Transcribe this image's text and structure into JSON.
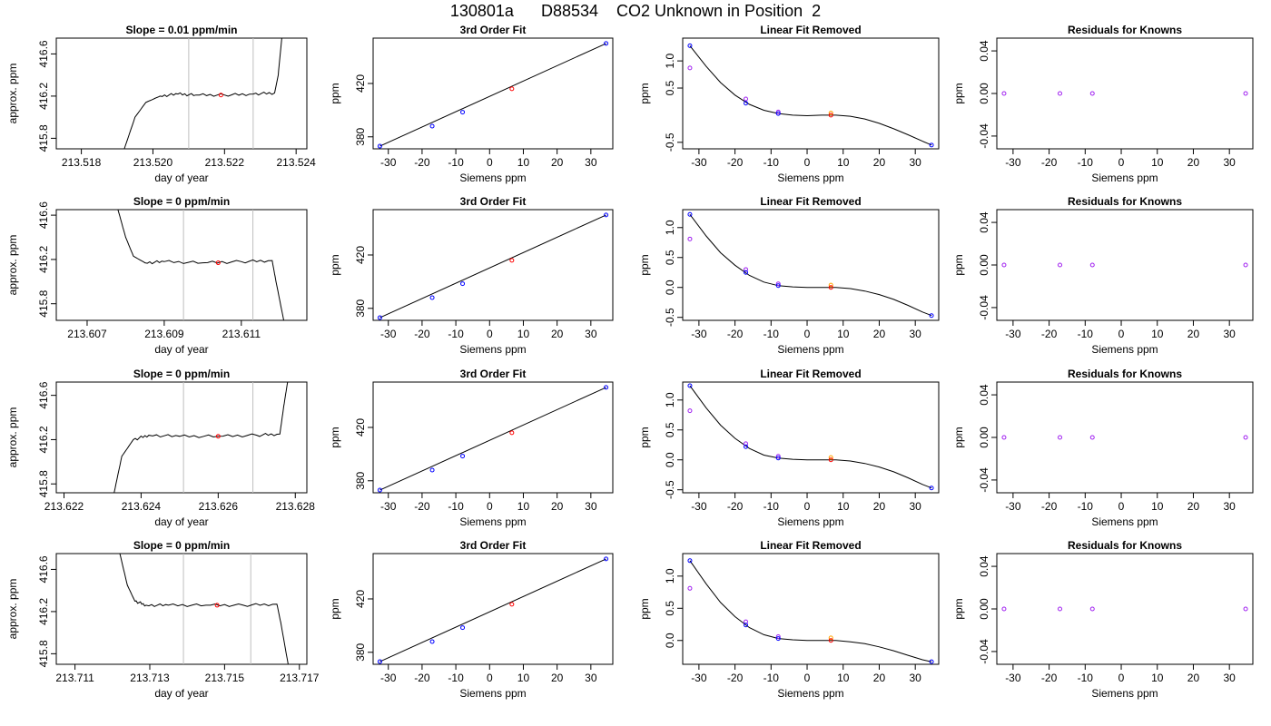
{
  "title": "130801a      D88534    CO2 Unknown in Position  2",
  "colors": {
    "trace": "#000000",
    "window": "#bebebe",
    "known": "#0000ff",
    "unknown": "#ff0000",
    "known_alt": "#a020f0",
    "unknown_alt": "#ffa500"
  },
  "chart_data": [
    {
      "type": "line",
      "title": "Slope =  0.01  ppm/min",
      "xlabel": "day of year",
      "ylabel": "approx. ppm",
      "xlim": [
        213.5173,
        213.5243
      ],
      "ylim": [
        415.7,
        416.75
      ],
      "xticks": [
        "213.518",
        "213.520",
        "213.522",
        "213.524"
      ],
      "xtick_values": [
        213.518,
        213.52,
        213.522,
        213.524
      ],
      "yticks": [
        "415.8",
        "416.2",
        "416.6"
      ],
      "ytick_values": [
        415.8,
        416.2,
        416.6
      ],
      "window": [
        213.521,
        213.5228
      ],
      "marker": {
        "x": 213.5219,
        "y": 416.21
      },
      "trace_x": [
        213.5192,
        213.5195,
        213.5198,
        213.5202,
        213.5207,
        213.5212,
        213.522,
        213.5228,
        213.5234,
        213.5235,
        213.5236
      ],
      "trace_y": [
        415.7,
        416.0,
        416.14,
        416.2,
        416.22,
        416.21,
        416.21,
        416.22,
        416.23,
        416.4,
        416.75
      ]
    },
    {
      "type": "scatter",
      "title": "3rd Order Fit",
      "xlabel": "Siemens ppm",
      "ylabel": "ppm",
      "xlim": [
        -34.5,
        36.5
      ],
      "ylim": [
        371,
        454
      ],
      "xticks": [
        "-30",
        "-20",
        "-10",
        "0",
        "10",
        "20",
        "30"
      ],
      "xtick_values": [
        -30,
        -20,
        -10,
        0,
        10,
        20,
        30
      ],
      "yticks": [
        "380",
        "420"
      ],
      "ytick_values": [
        380,
        420
      ],
      "known_x": [
        -32.5,
        -17,
        -8,
        34.5
      ],
      "known_y": [
        373,
        388,
        398.5,
        450
      ],
      "unknown": {
        "x": 6.6,
        "y": 416
      },
      "curve_x": [
        -32.5,
        34.5
      ],
      "curve_y": [
        373,
        450
      ]
    },
    {
      "type": "scatter",
      "title": "Linear Fit Removed",
      "xlabel": "Siemens ppm",
      "ylabel": "ppm",
      "xlim": [
        -34.5,
        36.5
      ],
      "ylim": [
        -0.62,
        1.42
      ],
      "xticks": [
        "-30",
        "-20",
        "-10",
        "0",
        "10",
        "20",
        "30"
      ],
      "xtick_values": [
        -30,
        -20,
        -10,
        0,
        10,
        20,
        30
      ],
      "yticks": [
        "-0.5",
        "0.5",
        "1.0"
      ],
      "ytick_values": [
        -0.5,
        0.5,
        1.0
      ],
      "known_x": [
        -32.5,
        -17,
        -8,
        34.5
      ],
      "known_y": [
        1.28,
        0.22,
        0.03,
        -0.55
      ],
      "known_alt_x": [
        -32.5,
        -17,
        -8
      ],
      "known_alt_y": [
        0.87,
        0.3,
        0.06
      ],
      "unknown": {
        "x": 6.6,
        "y": 0.0
      },
      "unknown_alt": {
        "x": 6.6,
        "y": 0.04
      },
      "curve_x": [
        -32.5,
        -28,
        -24,
        -20,
        -16,
        -12,
        -8,
        -4,
        0,
        4,
        8,
        12,
        16,
        20,
        24,
        28,
        32,
        34.5
      ],
      "curve_y": [
        1.28,
        0.9,
        0.6,
        0.37,
        0.2,
        0.09,
        0.03,
        0.0,
        -0.01,
        0.0,
        0.0,
        -0.02,
        -0.07,
        -0.15,
        -0.25,
        -0.36,
        -0.48,
        -0.55
      ]
    },
    {
      "type": "scatter",
      "title": "Residuals for Knowns",
      "xlabel": "Siemens ppm",
      "ylabel": "ppm",
      "xlim": [
        -34.5,
        36.5
      ],
      "ylim": [
        -0.052,
        0.052
      ],
      "xticks": [
        "-30",
        "-20",
        "-10",
        "0",
        "10",
        "20",
        "30"
      ],
      "xtick_values": [
        -30,
        -20,
        -10,
        0,
        10,
        20,
        30
      ],
      "yticks": [
        "-0.04",
        "0.00",
        "0.04"
      ],
      "ytick_values": [
        -0.04,
        0.0,
        0.04
      ],
      "known_x": [
        -32.5,
        -17,
        -8,
        34.5
      ],
      "known_y": [
        0,
        0,
        0,
        0
      ]
    },
    {
      "type": "line",
      "title": "Slope =  0  ppm/min",
      "xlabel": "day of year",
      "ylabel": "approx. ppm",
      "xlim": [
        213.6062,
        213.6127
      ],
      "ylim": [
        415.65,
        416.65
      ],
      "xticks": [
        "213.607",
        "213.609",
        "213.611"
      ],
      "xtick_values": [
        213.607,
        213.609,
        213.611
      ],
      "yticks": [
        "415.8",
        "416.2",
        "416.6"
      ],
      "ytick_values": [
        415.8,
        416.2,
        416.6
      ],
      "window": [
        213.6095,
        213.6113
      ],
      "marker": {
        "x": 213.6104,
        "y": 416.17
      },
      "trace_x": [
        213.6078,
        213.608,
        213.6082,
        213.6085,
        213.609,
        213.61,
        213.611,
        213.6118,
        213.6119,
        213.6121
      ],
      "trace_y": [
        416.65,
        416.4,
        416.23,
        416.17,
        416.18,
        416.17,
        416.18,
        416.19,
        416.0,
        415.65
      ]
    },
    {
      "type": "scatter",
      "title": "3rd Order Fit",
      "xlabel": "Siemens ppm",
      "ylabel": "ppm",
      "xlim": [
        -34.5,
        36.5
      ],
      "ylim": [
        371,
        454
      ],
      "xticks": [
        "-30",
        "-20",
        "-10",
        "0",
        "10",
        "20",
        "30"
      ],
      "xtick_values": [
        -30,
        -20,
        -10,
        0,
        10,
        20,
        30
      ],
      "yticks": [
        "380",
        "420"
      ],
      "ytick_values": [
        380,
        420
      ],
      "known_x": [
        -32.5,
        -17,
        -8,
        34.5
      ],
      "known_y": [
        373,
        388,
        398.5,
        450
      ],
      "unknown": {
        "x": 6.6,
        "y": 416
      },
      "curve_x": [
        -32.5,
        34.5
      ],
      "curve_y": [
        373,
        450
      ]
    },
    {
      "type": "scatter",
      "title": "Linear Fit Removed",
      "xlabel": "Siemens ppm",
      "ylabel": "ppm",
      "xlim": [
        -34.5,
        36.5
      ],
      "ylim": [
        -0.55,
        1.3
      ],
      "xticks": [
        "-30",
        "-20",
        "-10",
        "0",
        "10",
        "20",
        "30"
      ],
      "xtick_values": [
        -30,
        -20,
        -10,
        0,
        10,
        20,
        30
      ],
      "yticks": [
        "-0.5",
        "0.0",
        "0.5",
        "1.0"
      ],
      "ytick_values": [
        -0.5,
        0.0,
        0.5,
        1.0
      ],
      "known_x": [
        -32.5,
        -17,
        -8,
        34.5
      ],
      "known_y": [
        1.22,
        0.25,
        0.03,
        -0.47
      ],
      "known_alt_x": [
        -32.5,
        -17,
        -8
      ],
      "known_alt_y": [
        0.81,
        0.3,
        0.06
      ],
      "unknown": {
        "x": 6.6,
        "y": 0.0
      },
      "unknown_alt": {
        "x": 6.6,
        "y": 0.04
      },
      "curve_x": [
        -32.5,
        -28,
        -24,
        -20,
        -16,
        -12,
        -8,
        -4,
        0,
        4,
        8,
        12,
        16,
        20,
        24,
        28,
        32,
        34.5
      ],
      "curve_y": [
        1.22,
        0.86,
        0.58,
        0.37,
        0.2,
        0.09,
        0.03,
        0.01,
        0.0,
        0.0,
        0.0,
        -0.02,
        -0.06,
        -0.12,
        -0.2,
        -0.3,
        -0.41,
        -0.47
      ]
    },
    {
      "type": "scatter",
      "title": "Residuals for Knowns",
      "xlabel": "Siemens ppm",
      "ylabel": "ppm",
      "xlim": [
        -34.5,
        36.5
      ],
      "ylim": [
        -0.052,
        0.052
      ],
      "xticks": [
        "-30",
        "-20",
        "-10",
        "0",
        "10",
        "20",
        "30"
      ],
      "xtick_values": [
        -30,
        -20,
        -10,
        0,
        10,
        20,
        30
      ],
      "yticks": [
        "-0.04",
        "0.00",
        "0.04"
      ],
      "ytick_values": [
        -0.04,
        0.0,
        0.04
      ],
      "known_x": [
        -32.5,
        -17,
        -8,
        34.5
      ],
      "known_y": [
        0,
        0,
        0,
        0
      ]
    },
    {
      "type": "line",
      "title": "Slope =  0  ppm/min",
      "xlabel": "day of year",
      "ylabel": "approx. ppm",
      "xlim": [
        213.6218,
        213.6283
      ],
      "ylim": [
        415.72,
        416.72
      ],
      "xticks": [
        "213.622",
        "213.624",
        "213.626",
        "213.628"
      ],
      "xtick_values": [
        213.622,
        213.624,
        213.626,
        213.628
      ],
      "yticks": [
        "415.8",
        "416.2",
        "416.6"
      ],
      "ytick_values": [
        415.8,
        416.2,
        416.6
      ],
      "window": [
        213.6251,
        213.6269
      ],
      "marker": {
        "x": 213.626,
        "y": 416.23
      },
      "trace_x": [
        213.6233,
        213.6235,
        213.6238,
        213.6242,
        213.625,
        213.626,
        213.627,
        213.6276,
        213.6277,
        213.6278
      ],
      "trace_y": [
        415.72,
        416.05,
        416.2,
        416.24,
        416.23,
        416.23,
        416.24,
        416.25,
        416.5,
        416.72
      ]
    },
    {
      "type": "scatter",
      "title": "3rd Order Fit",
      "xlabel": "Siemens ppm",
      "ylabel": "ppm",
      "xlim": [
        -34.5,
        36.5
      ],
      "ylim": [
        371,
        454
      ],
      "xticks": [
        "-30",
        "-20",
        "-10",
        "0",
        "10",
        "20",
        "30"
      ],
      "xtick_values": [
        -30,
        -20,
        -10,
        0,
        10,
        20,
        30
      ],
      "yticks": [
        "380",
        "420"
      ],
      "ytick_values": [
        380,
        420
      ],
      "known_x": [
        -32.5,
        -17,
        -8,
        34.5
      ],
      "known_y": [
        373,
        388,
        398.5,
        450
      ],
      "unknown": {
        "x": 6.6,
        "y": 416
      },
      "curve_x": [
        -32.5,
        34.5
      ],
      "curve_y": [
        373,
        450
      ]
    },
    {
      "type": "scatter",
      "title": "Linear Fit Removed",
      "xlabel": "Siemens ppm",
      "ylabel": "ppm",
      "xlim": [
        -34.5,
        36.5
      ],
      "ylim": [
        -0.55,
        1.3
      ],
      "xticks": [
        "-30",
        "-20",
        "-10",
        "0",
        "10",
        "20",
        "30"
      ],
      "xtick_values": [
        -30,
        -20,
        -10,
        0,
        10,
        20,
        30
      ],
      "yticks": [
        "-0.5",
        "0.0",
        "0.5",
        "1.0"
      ],
      "ytick_values": [
        -0.5,
        0.0,
        0.5,
        1.0
      ],
      "known_x": [
        -32.5,
        -17,
        -8,
        34.5
      ],
      "known_y": [
        1.24,
        0.22,
        0.03,
        -0.47
      ],
      "known_alt_x": [
        -32.5,
        -17,
        -8
      ],
      "known_alt_y": [
        0.82,
        0.27,
        0.06
      ],
      "unknown": {
        "x": 6.6,
        "y": 0.0
      },
      "unknown_alt": {
        "x": 6.6,
        "y": 0.04
      },
      "curve_x": [
        -32.5,
        -28,
        -24,
        -20,
        -16,
        -12,
        -8,
        -4,
        0,
        4,
        8,
        12,
        16,
        20,
        24,
        28,
        32,
        34.5
      ],
      "curve_y": [
        1.24,
        0.87,
        0.58,
        0.36,
        0.19,
        0.08,
        0.03,
        0.01,
        0.0,
        0.0,
        0.0,
        -0.02,
        -0.06,
        -0.12,
        -0.2,
        -0.3,
        -0.41,
        -0.47
      ]
    },
    {
      "type": "scatter",
      "title": "Residuals for Knowns",
      "xlabel": "Siemens ppm",
      "ylabel": "ppm",
      "xlim": [
        -34.5,
        36.5
      ],
      "ylim": [
        -0.052,
        0.052
      ],
      "xticks": [
        "-30",
        "-20",
        "-10",
        "0",
        "10",
        "20",
        "30"
      ],
      "xtick_values": [
        -30,
        -20,
        -10,
        0,
        10,
        20,
        30
      ],
      "yticks": [
        "-0.04",
        "0.00",
        "0.04"
      ],
      "ytick_values": [
        -0.04,
        0.0,
        0.04
      ],
      "known_x": [
        -32.5,
        -17,
        -8,
        34.5
      ],
      "known_y": [
        0,
        0,
        0,
        0
      ]
    },
    {
      "type": "line",
      "title": "Slope =  0  ppm/min",
      "xlabel": "day of year",
      "ylabel": "approx. ppm",
      "xlim": [
        213.7105,
        213.7172
      ],
      "ylim": [
        415.7,
        416.75
      ],
      "xticks": [
        "213.711",
        "213.713",
        "213.715",
        "213.717"
      ],
      "xtick_values": [
        213.711,
        213.713,
        213.715,
        213.717
      ],
      "yticks": [
        "415.8",
        "416.2",
        "416.6"
      ],
      "ytick_values": [
        415.8,
        416.2,
        416.6
      ],
      "window": [
        213.7139,
        213.7157
      ],
      "marker": {
        "x": 213.7148,
        "y": 416.26
      },
      "trace_x": [
        213.7122,
        213.7124,
        213.7126,
        213.7129,
        213.7135,
        213.7145,
        213.7155,
        213.7164,
        213.7165,
        213.7167
      ],
      "trace_y": [
        416.75,
        416.45,
        416.3,
        416.26,
        416.26,
        416.26,
        416.26,
        416.27,
        416.1,
        415.7
      ]
    },
    {
      "type": "scatter",
      "title": "3rd Order Fit",
      "xlabel": "Siemens ppm",
      "ylabel": "ppm",
      "xlim": [
        -34.5,
        36.5
      ],
      "ylim": [
        371,
        454
      ],
      "xticks": [
        "-30",
        "-20",
        "-10",
        "0",
        "10",
        "20",
        "30"
      ],
      "xtick_values": [
        -30,
        -20,
        -10,
        0,
        10,
        20,
        30
      ],
      "yticks": [
        "380",
        "420"
      ],
      "ytick_values": [
        380,
        420
      ],
      "known_x": [
        -32.5,
        -17,
        -8,
        34.5
      ],
      "known_y": [
        373,
        388,
        398.5,
        450
      ],
      "unknown": {
        "x": 6.6,
        "y": 416
      },
      "curve_x": [
        -32.5,
        34.5
      ],
      "curve_y": [
        373,
        450
      ]
    },
    {
      "type": "scatter",
      "title": "Linear Fit Removed",
      "xlabel": "Siemens ppm",
      "ylabel": "ppm",
      "xlim": [
        -34.5,
        36.5
      ],
      "ylim": [
        -0.37,
        1.35
      ],
      "xticks": [
        "-30",
        "-20",
        "-10",
        "0",
        "10",
        "20",
        "30"
      ],
      "xtick_values": [
        -30,
        -20,
        -10,
        0,
        10,
        20,
        30
      ],
      "yticks": [
        "0.0",
        "0.5",
        "1.0"
      ],
      "ytick_values": [
        0.0,
        0.5,
        1.0
      ],
      "known_x": [
        -32.5,
        -17,
        -8,
        34.5
      ],
      "known_y": [
        1.24,
        0.24,
        0.03,
        -0.33
      ],
      "known_alt_x": [
        -32.5,
        -17,
        -8
      ],
      "known_alt_y": [
        0.81,
        0.29,
        0.06
      ],
      "unknown": {
        "x": 6.6,
        "y": 0.0
      },
      "unknown_alt": {
        "x": 6.6,
        "y": 0.04
      },
      "curve_x": [
        -32.5,
        -28,
        -24,
        -20,
        -16,
        -12,
        -8,
        -4,
        0,
        4,
        8,
        12,
        16,
        20,
        24,
        28,
        32,
        34.5
      ],
      "curve_y": [
        1.24,
        0.88,
        0.59,
        0.37,
        0.2,
        0.09,
        0.03,
        0.01,
        0.0,
        0.0,
        0.0,
        -0.02,
        -0.05,
        -0.1,
        -0.16,
        -0.23,
        -0.3,
        -0.33
      ]
    },
    {
      "type": "scatter",
      "title": "Residuals for Knowns",
      "xlabel": "Siemens ppm",
      "ylabel": "ppm",
      "xlim": [
        -34.5,
        36.5
      ],
      "ylim": [
        -0.052,
        0.052
      ],
      "xticks": [
        "-30",
        "-20",
        "-10",
        "0",
        "10",
        "20",
        "30"
      ],
      "xtick_values": [
        -30,
        -20,
        -10,
        0,
        10,
        20,
        30
      ],
      "yticks": [
        "-0.04",
        "0.00",
        "0.04"
      ],
      "ytick_values": [
        -0.04,
        0.0,
        0.04
      ],
      "known_x": [
        -32.5,
        -17,
        -8,
        34.5
      ],
      "known_y": [
        0,
        0,
        0,
        0
      ]
    }
  ]
}
